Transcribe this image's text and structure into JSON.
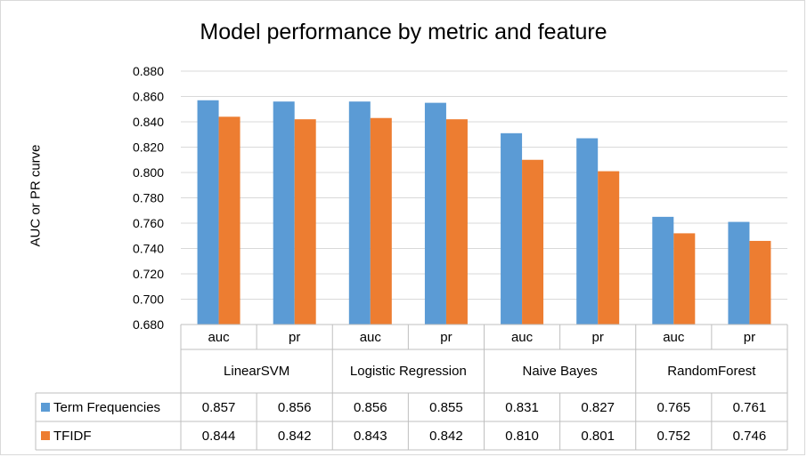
{
  "chart_data": {
    "type": "bar",
    "title": "Model performance by metric and feature",
    "xlabel": "",
    "ylabel": "AUC or PR curve",
    "ylim": [
      0.68,
      0.88
    ],
    "ytick_step": 0.02,
    "ytick_labels": [
      "0.680",
      "0.700",
      "0.720",
      "0.740",
      "0.760",
      "0.780",
      "0.800",
      "0.820",
      "0.840",
      "0.860",
      "0.880"
    ],
    "grid": true,
    "legend": "data-table",
    "groups": [
      "LinearSVM",
      "Logistic Regression",
      "Naive Bayes",
      "RandomForest"
    ],
    "categories": [
      "auc",
      "pr",
      "auc",
      "pr",
      "auc",
      "pr",
      "auc",
      "pr"
    ],
    "series": [
      {
        "name": "Term Frequencies",
        "color": "#5b9bd5",
        "values": [
          0.857,
          0.856,
          0.856,
          0.855,
          0.831,
          0.827,
          0.765,
          0.761
        ],
        "labels": [
          "0.857",
          "0.856",
          "0.856",
          "0.855",
          "0.831",
          "0.827",
          "0.765",
          "0.761"
        ]
      },
      {
        "name": "TFIDF",
        "color": "#ed7d31",
        "values": [
          0.844,
          0.842,
          0.843,
          0.842,
          0.81,
          0.801,
          0.752,
          0.746
        ],
        "labels": [
          "0.844",
          "0.842",
          "0.843",
          "0.842",
          "0.810",
          "0.801",
          "0.752",
          "0.746"
        ]
      }
    ]
  }
}
